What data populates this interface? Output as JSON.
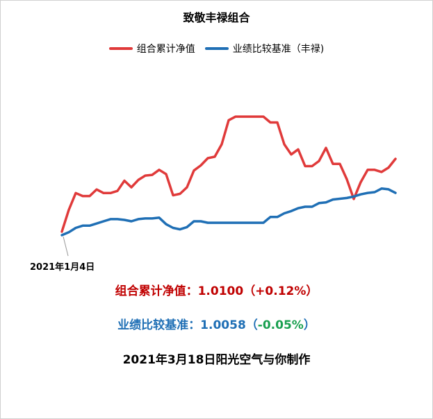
{
  "chart_data": {
    "type": "line",
    "title": "致敬丰禄组合",
    "legend_position": "top",
    "grid": false,
    "axes_visible": false,
    "start_label": "2021年1月4日",
    "series": [
      {
        "name": "组合累计净值",
        "color": "#e03a3a",
        "values": [
          1.0,
          1.003,
          1.0053,
          1.0049,
          1.0049,
          1.0058,
          1.0053,
          1.0053,
          1.0056,
          1.007,
          1.0061,
          1.0071,
          1.0077,
          1.0078,
          1.0085,
          1.0079,
          1.005,
          1.0052,
          1.0061,
          1.0084,
          1.0091,
          1.0101,
          1.0103,
          1.012,
          1.0153,
          1.0158,
          1.0158,
          1.0158,
          1.0158,
          1.0158,
          1.015,
          1.015,
          1.012,
          1.0106,
          1.0113,
          1.009,
          1.009,
          1.0097,
          1.0115,
          1.0093,
          1.0093,
          1.0072,
          1.0045,
          1.0068,
          1.0085,
          1.0085,
          1.0082,
          1.0088,
          1.01
        ]
      },
      {
        "name": "业绩比较基准（丰禄)",
        "color": "#1f6fb5",
        "values": [
          1.0,
          1.0004,
          1.001,
          1.0013,
          1.0013,
          1.0016,
          1.0019,
          1.0022,
          1.0022,
          1.0021,
          1.0019,
          1.0022,
          1.0023,
          1.0023,
          1.0024,
          1.0015,
          1.001,
          1.0008,
          1.0011,
          1.0019,
          1.0019,
          1.0017,
          1.0017,
          1.0017,
          1.0017,
          1.0017,
          1.0017,
          1.0017,
          1.0017,
          1.0017,
          1.0025,
          1.0025,
          1.003,
          1.0033,
          1.0037,
          1.0039,
          1.0039,
          1.0044,
          1.0045,
          1.0049,
          1.005,
          1.0051,
          1.0053,
          1.0056,
          1.0058,
          1.0059,
          1.0064,
          1.0063,
          1.0058
        ]
      }
    ]
  },
  "summary": {
    "nav_label": "组合累计净值：",
    "nav_value": "1.0100",
    "nav_change": "（+0.12%）",
    "bench_label": "业绩比较基准：",
    "bench_value": "1.0058",
    "bench_open": "（",
    "bench_change": "-0.05%",
    "bench_close": "）",
    "footer": "2021年3月18日阳光空气与你制作"
  },
  "colors": {
    "nav": "#c00000",
    "bench": "#1f6fb5",
    "negative": "#1aa050"
  }
}
